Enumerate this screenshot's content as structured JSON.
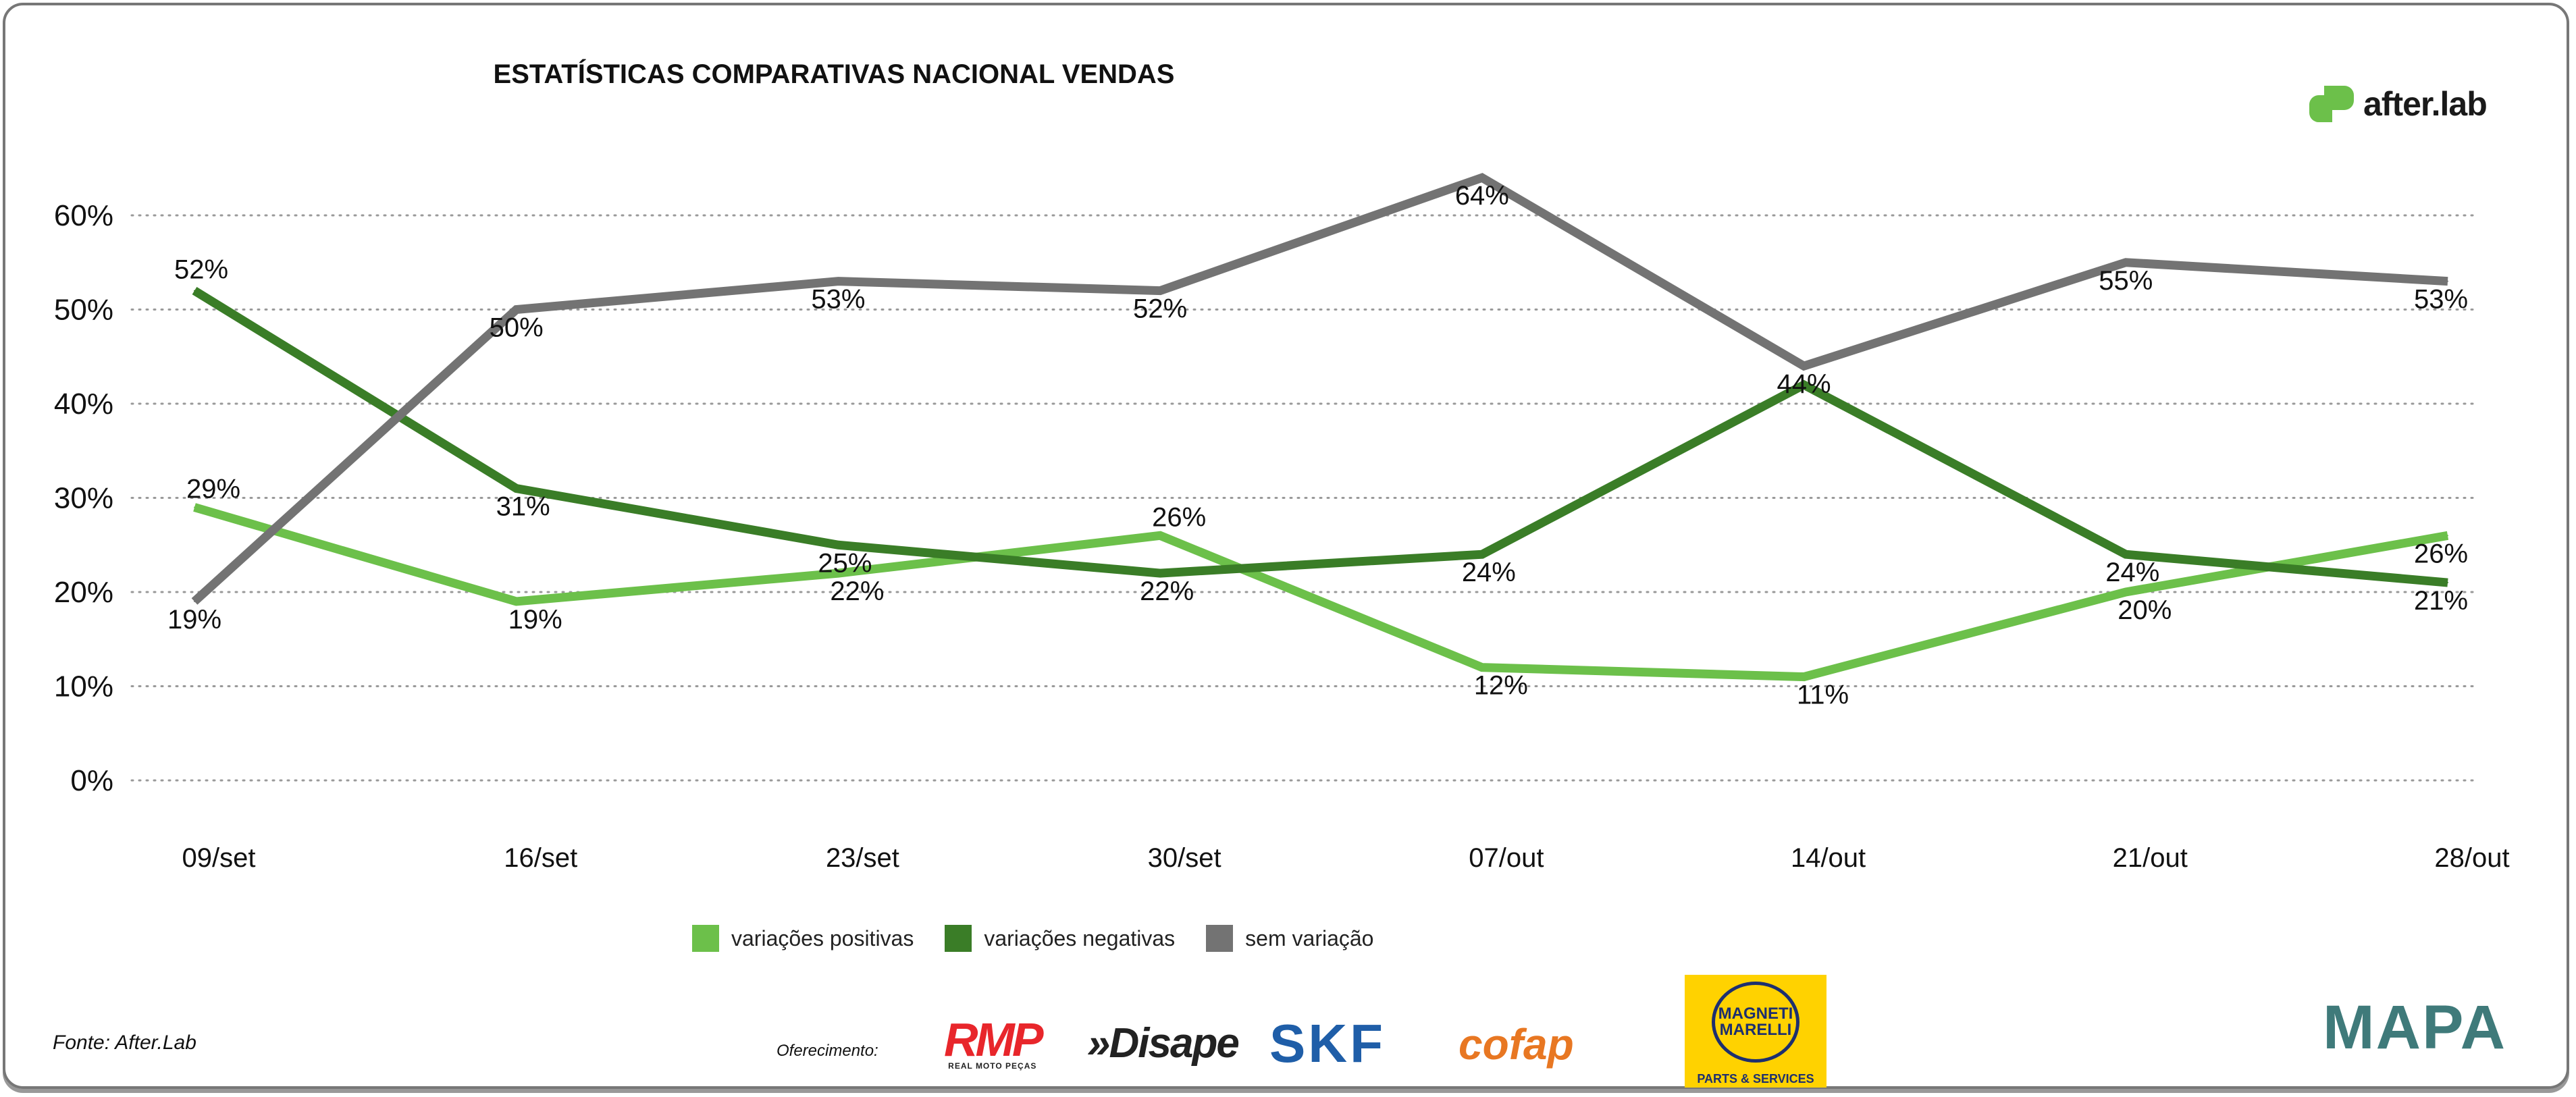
{
  "title": "ESTATÍSTICAS COMPARATIVAS NACIONAL VENDAS",
  "brand": "after.lab",
  "source": "Fonte: After.Lab",
  "sponsor_label": "Oferecimento:",
  "sponsors": [
    "RMP",
    "REAL MOTO PEÇAS",
    "»Disape",
    "SKF",
    "cofap",
    "MAGNETI MARELLI",
    "PARTS & SERVICES",
    "MAPA"
  ],
  "chart_data": {
    "type": "line",
    "title": "ESTATÍSTICAS COMPARATIVAS NACIONAL VENDAS",
    "xlabel": "",
    "ylabel": "",
    "categories": [
      "09/set",
      "16/set",
      "23/set",
      "30/set",
      "07/out",
      "14/out",
      "21/out",
      "28/out"
    ],
    "ylim": [
      0,
      60
    ],
    "yticks": [
      "0%",
      "10%",
      "20%",
      "30%",
      "40%",
      "50%",
      "60%"
    ],
    "grid": true,
    "legend_position": "bottom",
    "series": [
      {
        "name": "variações positivas",
        "color": "#6cc04a",
        "values": [
          29,
          19,
          22,
          26,
          12,
          11,
          20,
          26
        ],
        "labels": [
          "29%",
          "19%",
          "22%",
          "26%",
          "12%",
          "11%",
          "20%",
          "26%"
        ]
      },
      {
        "name": "variações negativas",
        "color": "#3a7d27",
        "values": [
          52,
          31,
          25,
          22,
          24,
          42,
          24,
          21
        ],
        "labels": [
          "52%",
          "31%",
          "25%",
          "22%",
          "24%",
          null,
          "24%",
          "21%"
        ]
      },
      {
        "name": "sem variação",
        "color": "#737373",
        "values": [
          19,
          50,
          53,
          52,
          64,
          44,
          55,
          53
        ],
        "labels": [
          "19%",
          "50%",
          "53%",
          "52%",
          "64%",
          "44%",
          "55%",
          "53%"
        ]
      }
    ]
  }
}
